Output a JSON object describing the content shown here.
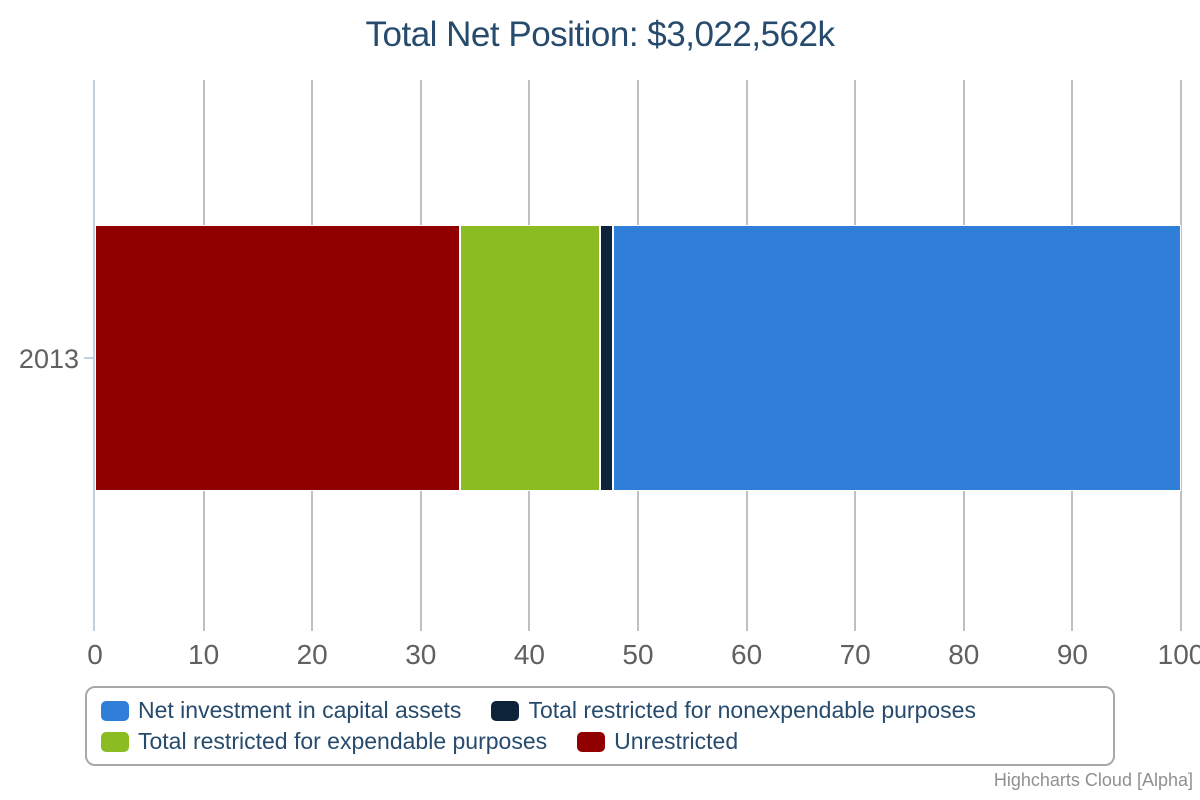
{
  "title": {
    "text": "Total Net Position: $3,022,562k",
    "color": "#274b6d"
  },
  "chart_data": {
    "type": "bar",
    "orientation": "horizontal",
    "stacked": true,
    "title": "Total Net Position: $3,022,562k",
    "categories": [
      "2013"
    ],
    "series": [
      {
        "name": "Net investment in capital assets",
        "color": "#2f7ed8",
        "values": [
          52.3
        ]
      },
      {
        "name": "Total restricted for nonexpendable purposes",
        "color": "#0d233a",
        "values": [
          1.2
        ]
      },
      {
        "name": "Total restricted for expendable purposes",
        "color": "#8bbc21",
        "values": [
          12.9
        ]
      },
      {
        "name": "Unrestricted",
        "color": "#910000",
        "values": [
          33.6
        ]
      }
    ],
    "values_unit": "percent of total",
    "stack_order_from_axis": [
      "Unrestricted",
      "Total restricted for expendable purposes",
      "Total restricted for nonexpendable purposes",
      "Net investment in capital assets"
    ],
    "xlabel": "",
    "ylabel": "",
    "xlim": [
      0,
      100
    ],
    "x_ticks": [
      0,
      10,
      20,
      30,
      40,
      50,
      60,
      70,
      80,
      90,
      100
    ],
    "grid": true,
    "legend_position": "bottom",
    "legend_rows": [
      [
        "Net investment in capital assets",
        "Total restricted for nonexpendable purposes"
      ],
      [
        "Total restricted for expendable purposes",
        "Unrestricted"
      ]
    ]
  },
  "y_axis": {
    "category_label": "2013"
  },
  "colors": {
    "grid": "#c0c0c0",
    "axis_line": "#c0d0e0",
    "axis_label": "#606060",
    "legend_text": "#274b6d",
    "legend_border": "#a8a8a8",
    "background": "#ffffff"
  },
  "credits": {
    "text": "Highcharts Cloud [Alpha]",
    "color": "#909090"
  }
}
